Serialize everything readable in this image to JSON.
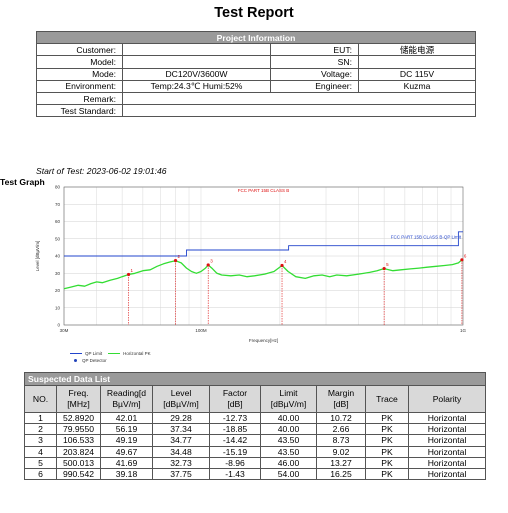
{
  "title": "Test Report",
  "project": {
    "header": "Project Information",
    "rows": [
      {
        "l1": "Customer:",
        "v1": "",
        "l2": "EUT:",
        "v2": "储能电源"
      },
      {
        "l1": "Model:",
        "v1": "",
        "l2": "SN:",
        "v2": ""
      },
      {
        "l1": "Mode:",
        "v1": "DC120V/3600W",
        "l2": "Voltage:",
        "v2": "DC 115V"
      },
      {
        "l1": "Environment:",
        "v1": "Temp:24.3℃  Humi:52%",
        "l2": "Engineer:",
        "v2": "Kuzma"
      }
    ],
    "remark_label": "Remark:",
    "remark_value": "",
    "standard_label": "Test Standard:",
    "standard_value": ""
  },
  "start_of_test": "Start of Test: 2023-06-02 19:01:46",
  "test_graph_label": "Test Graph",
  "chart_data": {
    "type": "line",
    "title": "FCC PART 15B CLASS B",
    "xlabel": "Frequency[Hz]",
    "ylabel": "Level [dBµV/m]",
    "x_scale": "log",
    "xlim": [
      30,
      1000
    ],
    "ylim": [
      0,
      80
    ],
    "y_ticks": [
      0,
      10,
      20,
      30,
      40,
      50,
      60,
      70,
      80
    ],
    "x_tick_labels": [
      {
        "v": 30,
        "t": "30M"
      },
      {
        "v": 100,
        "t": "100M"
      },
      {
        "v": 1000,
        "t": "1G"
      }
    ],
    "limit_label": "FCC PART 15B CLASS B-QP Limit",
    "limit_segments": [
      {
        "x": [
          30,
          88
        ],
        "y": 40
      },
      {
        "x": [
          88,
          216
        ],
        "y": 43.5
      },
      {
        "x": [
          216,
          960
        ],
        "y": 46
      },
      {
        "x": [
          960,
          1000
        ],
        "y": 54
      }
    ],
    "trace_points": [
      [
        30,
        21
      ],
      [
        32,
        22
      ],
      [
        34,
        23
      ],
      [
        36,
        22.5
      ],
      [
        38,
        24
      ],
      [
        40,
        25
      ],
      [
        42,
        24.5
      ],
      [
        45,
        26
      ],
      [
        48,
        27
      ],
      [
        50,
        28
      ],
      [
        52.9,
        29.3
      ],
      [
        56,
        30
      ],
      [
        60,
        31.5
      ],
      [
        64,
        32
      ],
      [
        68,
        34
      ],
      [
        72,
        35.5
      ],
      [
        76,
        36.5
      ],
      [
        79.96,
        37.3
      ],
      [
        84,
        36
      ],
      [
        88,
        33
      ],
      [
        92,
        31
      ],
      [
        96,
        30
      ],
      [
        100,
        31
      ],
      [
        104,
        33
      ],
      [
        106.5,
        34.8
      ],
      [
        110,
        33
      ],
      [
        115,
        30
      ],
      [
        120,
        29
      ],
      [
        130,
        28.5
      ],
      [
        140,
        29
      ],
      [
        150,
        28
      ],
      [
        160,
        28.5
      ],
      [
        175,
        29.5
      ],
      [
        190,
        31
      ],
      [
        203.8,
        34.5
      ],
      [
        215,
        31
      ],
      [
        230,
        28
      ],
      [
        250,
        27
      ],
      [
        270,
        28.5
      ],
      [
        290,
        29
      ],
      [
        310,
        28
      ],
      [
        330,
        29
      ],
      [
        360,
        28.5
      ],
      [
        400,
        29.5
      ],
      [
        440,
        30.5
      ],
      [
        470,
        31.5
      ],
      [
        500,
        32.7
      ],
      [
        540,
        31.5
      ],
      [
        580,
        32
      ],
      [
        630,
        32.5
      ],
      [
        680,
        33
      ],
      [
        730,
        33.5
      ],
      [
        790,
        34
      ],
      [
        850,
        34.5
      ],
      [
        910,
        35
      ],
      [
        960,
        36
      ],
      [
        990.5,
        37.8
      ],
      [
        1000,
        37
      ]
    ],
    "peak_markers": [
      {
        "n": "1",
        "x": 52.892,
        "y": 29.28
      },
      {
        "n": "2",
        "x": 79.955,
        "y": 37.34
      },
      {
        "n": "3",
        "x": 106.533,
        "y": 34.77
      },
      {
        "n": "4",
        "x": 203.824,
        "y": 34.48
      },
      {
        "n": "5",
        "x": 500.013,
        "y": 32.73
      },
      {
        "n": "6",
        "x": 990.542,
        "y": 37.75
      }
    ],
    "colors": {
      "limit": "#2244cc",
      "trace": "#33dd33",
      "marker": "#dd1111"
    }
  },
  "legend": {
    "qp_limit": "QP Limit",
    "horizontal_pk": "Horizontal PK",
    "qp_detector": "QP Detector"
  },
  "suspected": {
    "caption": "Suspected Data List",
    "headers": [
      "NO.",
      "Freq.\n[MHz]",
      "Reading[d\nBµV/m]",
      "Level\n[dBµV/m]",
      "Factor\n[dB]",
      "Limit\n[dBµV/m]",
      "Margin\n[dB]",
      "Trace",
      "Polarity"
    ],
    "rows": [
      [
        "1",
        "52.8920",
        "42.01",
        "29.28",
        "-12.73",
        "40.00",
        "10.72",
        "PK",
        "Horizontal"
      ],
      [
        "2",
        "79.9550",
        "56.19",
        "37.34",
        "-18.85",
        "40.00",
        "2.66",
        "PK",
        "Horizontal"
      ],
      [
        "3",
        "106.533",
        "49.19",
        "34.77",
        "-14.42",
        "43.50",
        "8.73",
        "PK",
        "Horizontal"
      ],
      [
        "4",
        "203.824",
        "49.67",
        "34.48",
        "-15.19",
        "43.50",
        "9.02",
        "PK",
        "Horizontal"
      ],
      [
        "5",
        "500.013",
        "41.69",
        "32.73",
        "-8.96",
        "46.00",
        "13.27",
        "PK",
        "Horizontal"
      ],
      [
        "6",
        "990.542",
        "39.18",
        "37.75",
        "-1.43",
        "54.00",
        "16.25",
        "PK",
        "Horizontal"
      ]
    ]
  }
}
